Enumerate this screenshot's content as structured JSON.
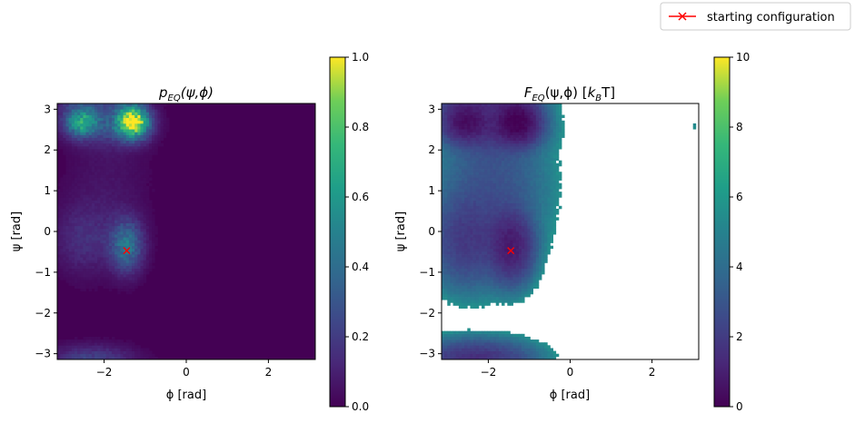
{
  "legend": {
    "label": "starting configuration",
    "color": "#ff0000",
    "marker": "x"
  },
  "chart_data": [
    {
      "type": "heatmap",
      "title": "p_EQ(ψ,ϕ)",
      "title_parts": {
        "base": "p",
        "sub": "EQ",
        "rest": "(ψ,ϕ)"
      },
      "xlabel": "ϕ [rad]",
      "ylabel": "ψ [rad]",
      "xlim": [
        -3.14159,
        3.14159
      ],
      "ylim": [
        -3.14159,
        3.14159
      ],
      "xticks": [
        -2,
        0,
        2
      ],
      "yticks": [
        -3,
        -2,
        -1,
        0,
        1,
        2,
        3
      ],
      "xticklabels": [
        "−2",
        "0",
        "2"
      ],
      "yticklabels": [
        "−3",
        "−2",
        "−1",
        "0",
        "1",
        "2",
        "3"
      ],
      "colormap": "viridis",
      "colorbar": {
        "min": 0,
        "max": 1,
        "ticks": [
          0,
          0.2,
          0.4,
          0.6,
          0.8,
          1.0
        ],
        "ticklabels": [
          "0.0",
          "0.2",
          "0.4",
          "0.6",
          "0.8",
          "1.0"
        ]
      },
      "grid": false,
      "marker": {
        "phi": -1.45,
        "psi": -0.47,
        "symbol": "x",
        "color": "#ff0000"
      },
      "density_peaks": [
        {
          "phi": -1.3,
          "psi": 2.7,
          "value": 1.0
        },
        {
          "phi": -2.6,
          "psi": 2.7,
          "value": 0.6
        },
        {
          "phi": -1.45,
          "psi": -0.35,
          "value": 0.4
        },
        {
          "phi": -2.6,
          "psi": -0.2,
          "value": 0.15
        },
        {
          "phi": -2.3,
          "psi": -3.1,
          "value": 0.2
        }
      ]
    },
    {
      "type": "heatmap",
      "title": "F_EQ(ψ,ϕ) [k_B T]",
      "title_parts": {
        "base": "F",
        "sub": "EQ",
        "rest": "(ψ,ϕ) [",
        "k": "k",
        "ksub": "B",
        "end": "T]"
      },
      "xlabel": "ϕ [rad]",
      "ylabel": "ψ [rad]",
      "xlim": [
        -3.14159,
        3.14159
      ],
      "ylim": [
        -3.14159,
        3.14159
      ],
      "xticks": [
        -2,
        0,
        2
      ],
      "yticks": [
        -3,
        -2,
        -1,
        0,
        1,
        2,
        3
      ],
      "xticklabels": [
        "−2",
        "0",
        "2"
      ],
      "yticklabels": [
        "−3",
        "−2",
        "−1",
        "0",
        "1",
        "2",
        "3"
      ],
      "colormap": "viridis",
      "colorbar": {
        "min": 0,
        "max": 10,
        "ticks": [
          0,
          2,
          4,
          6,
          8,
          10
        ],
        "ticklabels": [
          "0",
          "2",
          "4",
          "6",
          "8",
          "10"
        ]
      },
      "grid": false,
      "marker": {
        "phi": -1.45,
        "psi": -0.47,
        "symbol": "x",
        "color": "#ff0000"
      },
      "free_energy_minima": [
        {
          "phi": -1.3,
          "psi": 2.7,
          "value": 0.0
        },
        {
          "phi": -2.6,
          "psi": 2.7,
          "value": 0.5
        },
        {
          "phi": -1.45,
          "psi": -0.35,
          "value": 1.0
        },
        {
          "phi": -2.6,
          "psi": -0.2,
          "value": 2.0
        }
      ],
      "empty_region": "white (no samples) for ϕ > −0.6 except small patch near ϕ ≈ 3.1, ψ ≈ 2.5"
    }
  ]
}
